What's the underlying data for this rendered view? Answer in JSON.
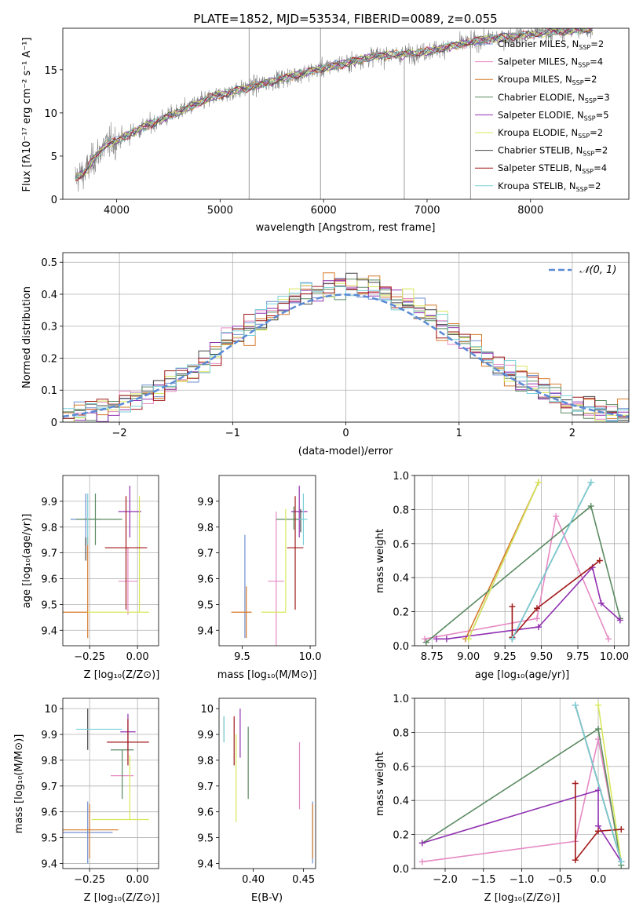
{
  "colors": {
    "Chabrier MILES": "#6f8fd0",
    "Salpeter MILES": "#e68ac4",
    "Kroupa MILES": "#d67a2a",
    "Chabrier ELODIE": "#5a8a60",
    "Salpeter ELODIE": "#9030b0",
    "Kroupa ELODIE": "#d8e85a",
    "Chabrier STELIB": "#444444",
    "Salpeter STELIB": "#a01818",
    "Kroupa STELIB": "#7ad0d8",
    "data": "#808080",
    "normal": "#5b8ad6"
  },
  "chart_data": [
    {
      "id": "spectrum",
      "type": "line",
      "title": "PLATE=1852, MJD=53534, FIBERID=0089, z=0.055",
      "xlabel": "wavelength [Angstrom, rest frame]",
      "ylabel": "Flux [fλ10⁻¹⁷ erg cm⁻² s⁻¹ A⁻¹]",
      "xlim": [
        3480,
        8950
      ],
      "ylim": [
        0,
        19.8
      ],
      "xticks": [
        4000,
        5000,
        6000,
        7000,
        8000
      ],
      "yticks": [
        0,
        5,
        10,
        15
      ],
      "legend_position": "right",
      "legend": [
        {
          "name": "Chabrier MILES",
          "sub": "SSP",
          "n": "2"
        },
        {
          "name": "Salpeter MILES",
          "sub": "SSP",
          "n": "4"
        },
        {
          "name": "Kroupa MILES",
          "sub": "SSP",
          "n": "2"
        },
        {
          "name": "Chabrier ELODIE",
          "sub": "SSP",
          "n": "3"
        },
        {
          "name": "Salpeter ELODIE",
          "sub": "SSP",
          "n": "5"
        },
        {
          "name": "Kroupa ELODIE",
          "sub": "SSP",
          "n": "2"
        },
        {
          "name": "Chabrier STELIB",
          "sub": "SSP",
          "n": "2"
        },
        {
          "name": "Salpeter STELIB",
          "sub": "SSP",
          "n": "4"
        },
        {
          "name": "Kroupa STELIB",
          "sub": "SSP",
          "n": "2"
        }
      ],
      "continuum": {
        "x": [
          3600,
          3700,
          3800,
          3900,
          4000,
          4200,
          4500,
          4800,
          5000,
          5300,
          5600,
          6000,
          6300,
          6500,
          6800,
          7000,
          7300,
          7600,
          8000,
          8300,
          8600
        ],
        "y": [
          2.5,
          3.2,
          5.0,
          6.4,
          6.8,
          8.0,
          9.6,
          11.2,
          12.1,
          13.0,
          14.0,
          15.2,
          16.0,
          16.6,
          16.8,
          17.1,
          17.9,
          18.6,
          19.1,
          19.5,
          19.7
        ]
      }
    },
    {
      "id": "residuals",
      "type": "histogram",
      "xlabel": "(data-model)/error",
      "ylabel": "Normed distribution",
      "xlim": [
        -2.5,
        2.5
      ],
      "ylim": [
        0,
        0.53
      ],
      "xticks": [
        -2,
        -1,
        0,
        1,
        2
      ],
      "yticks": [
        0.0,
        0.1,
        0.2,
        0.3,
        0.4,
        0.5
      ],
      "legend": "𝒩(0, 1)",
      "legend_position": "upper right",
      "gaussian": {
        "mean": 0,
        "sigma": 1
      },
      "bin_width": 0.1
    },
    {
      "id": "age_vs_Z",
      "type": "errorbar",
      "xlabel": "Z [log₁₀(Z/Z⊙)]",
      "ylabel": "age  [log₁₀(age/yr)]",
      "xlim": [
        -0.39,
        0.11
      ],
      "ylim": [
        9.34,
        10.0
      ],
      "xticks": [
        -0.25,
        0.0
      ],
      "xticklabels": [
        "−0.25",
        "0.00"
      ],
      "yticks": [
        9.4,
        9.5,
        9.6,
        9.7,
        9.8,
        9.9
      ],
      "points": [
        {
          "s": "Chabrier MILES",
          "x": -0.27,
          "y": 9.83,
          "xe": [
            0.08,
            0.08
          ],
          "ye": [
            0.1,
            0.1
          ]
        },
        {
          "s": "Salpeter MILES",
          "x": -0.05,
          "y": 9.59,
          "xe": [
            0.05,
            0.05
          ],
          "ye": [
            0.13,
            0.13
          ]
        },
        {
          "s": "Kroupa MILES",
          "x": -0.26,
          "y": 9.47,
          "xe": [
            0.14,
            0.0
          ],
          "ye": [
            0.1,
            0.29
          ]
        },
        {
          "s": "Chabrier ELODIE",
          "x": -0.22,
          "y": 9.83,
          "xe": [
            0.1,
            0.14
          ],
          "ye": [
            0.1,
            0.1
          ]
        },
        {
          "s": "Salpeter ELODIE",
          "x": -0.04,
          "y": 9.86,
          "xe": [
            0.06,
            0.06
          ],
          "ye": [
            0.1,
            0.1
          ]
        },
        {
          "s": "Kroupa ELODIE",
          "x": 0.01,
          "y": 9.47,
          "xe": [
            0.27,
            0.05
          ],
          "ye": [
            0.0,
            0.45
          ]
        },
        {
          "s": "Chabrier STELIB",
          "x": -0.27,
          "y": 9.72,
          "xe": [
            0.0,
            0.0
          ],
          "ye": [
            0.05,
            0.04
          ]
        },
        {
          "s": "Salpeter STELIB",
          "x": -0.06,
          "y": 9.72,
          "xe": [
            0.11,
            0.11
          ],
          "ye": [
            0.24,
            0.2
          ]
        },
        {
          "s": "Kroupa STELIB",
          "x": -0.26,
          "y": 9.83,
          "xe": [
            0.0,
            0.0
          ],
          "ye": [
            0.1,
            0.1
          ]
        }
      ]
    },
    {
      "id": "age_vs_mass",
      "type": "errorbar",
      "xlabel": "mass [log₁₀(M/M⊙)]",
      "ylabel": "",
      "xlim": [
        9.33,
        10.04
      ],
      "ylim": [
        9.34,
        10.0
      ],
      "xticks": [
        9.5,
        10.0
      ],
      "xticklabels": [
        "9.5",
        "10.0"
      ],
      "yticks": [
        9.4,
        9.5,
        9.6,
        9.7,
        9.8,
        9.9
      ],
      "points": [
        {
          "s": "Chabrier MILES",
          "x": 9.52,
          "y": 9.57,
          "xe": [
            0.0,
            0.0
          ],
          "ye": [
            0.2,
            0.2
          ]
        },
        {
          "s": "Salpeter MILES",
          "x": 9.75,
          "y": 9.59,
          "xe": [
            0.06,
            0.06
          ],
          "ye": [
            0.27,
            0.27
          ]
        },
        {
          "s": "Kroupa MILES",
          "x": 9.53,
          "y": 9.47,
          "xe": [
            0.11,
            0.04
          ],
          "ye": [
            0.1,
            0.1
          ]
        },
        {
          "s": "Chabrier ELODIE",
          "x": 9.88,
          "y": 9.83,
          "xe": [
            0.13,
            0.06
          ],
          "ye": [
            0.04,
            0.05
          ]
        },
        {
          "s": "Salpeter ELODIE",
          "x": 9.92,
          "y": 9.86,
          "xe": [
            0.06,
            0.06
          ],
          "ye": [
            0.1,
            0.1
          ]
        },
        {
          "s": "Kroupa ELODIE",
          "x": 9.82,
          "y": 9.47,
          "xe": [
            0.18,
            0.0
          ],
          "ye": [
            0.0,
            0.4
          ]
        },
        {
          "s": "Chabrier STELIB",
          "x": 9.93,
          "y": 9.83,
          "xe": [
            0.0,
            0.0
          ],
          "ye": [
            0.05,
            0.04
          ]
        },
        {
          "s": "Salpeter STELIB",
          "x": 9.89,
          "y": 9.72,
          "xe": [
            0.06,
            0.06
          ],
          "ye": [
            0.24,
            0.2
          ]
        },
        {
          "s": "Kroupa STELIB",
          "x": 9.95,
          "y": 9.83,
          "xe": [
            0.03,
            0.03
          ],
          "ye": [
            0.1,
            0.1
          ]
        }
      ]
    },
    {
      "id": "weight_vs_age",
      "type": "line",
      "xlabel": "age  [log₁₀(age/yr)]",
      "ylabel": "mass weight",
      "xlim": [
        8.63,
        10.1
      ],
      "ylim": [
        0,
        1.0
      ],
      "xticks": [
        8.75,
        9.0,
        9.25,
        9.5,
        9.75,
        10.0
      ],
      "xticklabels": [
        "8.75",
        "9.00",
        "9.25",
        "9.50",
        "9.75",
        "10.00"
      ],
      "yticks": [
        0.0,
        0.2,
        0.4,
        0.6,
        0.8,
        1.0
      ],
      "yticklabels": [
        "0.0",
        "0.2",
        "0.4",
        "0.6",
        "0.8",
        "1.0"
      ],
      "series": [
        {
          "s": "Chabrier MILES",
          "points": [
            [
              9.0,
              0.04
            ],
            [
              9.48,
              0.96
            ]
          ]
        },
        {
          "s": "Salpeter MILES",
          "points": [
            [
              8.7,
              0.04
            ],
            [
              9.47,
              0.16
            ],
            [
              9.6,
              0.76
            ],
            [
              9.96,
              0.04
            ]
          ]
        },
        {
          "s": "Kroupa MILES",
          "points": [
            [
              8.98,
              0.04
            ],
            [
              9.48,
              0.96
            ]
          ]
        },
        {
          "s": "Chabrier ELODIE",
          "points": [
            [
              8.71,
              0.02
            ],
            [
              9.84,
              0.82
            ],
            [
              10.04,
              0.16
            ]
          ]
        },
        {
          "s": "Salpeter ELODIE",
          "points": [
            [
              8.78,
              0.04
            ],
            [
              8.85,
              0.04
            ],
            [
              9.48,
              0.11
            ],
            [
              9.85,
              0.46
            ],
            [
              9.91,
              0.25
            ],
            [
              10.04,
              0.15
            ]
          ]
        },
        {
          "s": "Kroupa ELODIE",
          "points": [
            [
              9.0,
              0.04
            ],
            [
              9.48,
              0.96
            ]
          ]
        },
        {
          "s": "Chabrier STELIB",
          "points": [
            [
              9.3,
              0.04
            ],
            [
              9.84,
              0.96
            ]
          ]
        },
        {
          "s": "Salpeter STELIB",
          "points": [
            [
              9.3,
              0.23
            ],
            [
              9.3,
              0.05
            ],
            [
              9.47,
              0.22
            ],
            [
              9.9,
              0.5
            ]
          ]
        },
        {
          "s": "Kroupa STELIB",
          "points": [
            [
              9.3,
              0.04
            ],
            [
              9.84,
              0.96
            ]
          ]
        }
      ]
    },
    {
      "id": "mass_vs_Z",
      "type": "errorbar",
      "xlabel": "Z [log₁₀(Z/Z⊙)]",
      "ylabel": "mass [log₁₀(M/M⊙)]",
      "xlim": [
        -0.39,
        0.11
      ],
      "ylim": [
        9.38,
        10.04
      ],
      "xticks": [
        -0.25,
        0.0
      ],
      "xticklabels": [
        "−0.25",
        "0.00"
      ],
      "yticks": [
        9.4,
        9.5,
        9.6,
        9.7,
        9.8,
        9.9,
        10.0
      ],
      "points": [
        {
          "s": "Chabrier MILES",
          "x": -0.26,
          "y": 9.52,
          "xe": [
            0.14,
            0.13
          ],
          "ye": [
            0.12,
            0.12
          ]
        },
        {
          "s": "Salpeter MILES",
          "x": -0.08,
          "y": 9.74,
          "xe": [
            0.06,
            0.06
          ],
          "ye": [
            0.0,
            0.0
          ]
        },
        {
          "s": "Kroupa MILES",
          "x": -0.25,
          "y": 9.53,
          "xe": [
            0.14,
            0.15
          ],
          "ye": [
            0.11,
            0.1
          ]
        },
        {
          "s": "Chabrier ELODIE",
          "x": -0.08,
          "y": 9.84,
          "xe": [
            0.06,
            0.06
          ],
          "ye": [
            0.19,
            0.0
          ]
        },
        {
          "s": "Salpeter ELODIE",
          "x": -0.05,
          "y": 9.91,
          "xe": [
            0.04,
            0.04
          ],
          "ye": [
            0.07,
            0.07
          ]
        },
        {
          "s": "Kroupa ELODIE",
          "x": -0.04,
          "y": 9.57,
          "xe": [
            0.2,
            0.1
          ],
          "ye": [
            0.0,
            0.25
          ]
        },
        {
          "s": "Chabrier STELIB",
          "x": -0.26,
          "y": 9.92,
          "xe": [
            0.0,
            0.0
          ],
          "ye": [
            0.08,
            0.08
          ]
        },
        {
          "s": "Salpeter STELIB",
          "x": -0.05,
          "y": 9.87,
          "xe": [
            0.11,
            0.11
          ],
          "ye": [
            0.09,
            0.09
          ]
        },
        {
          "s": "Kroupa STELIB",
          "x": -0.22,
          "y": 9.92,
          "xe": [
            0.1,
            0.14
          ],
          "ye": [
            0.0,
            0.0
          ]
        }
      ]
    },
    {
      "id": "mass_vs_EBV",
      "type": "errorbar",
      "xlabel": "E(B-V)",
      "ylabel": "",
      "xlim": [
        0.366,
        0.462
      ],
      "ylim": [
        9.38,
        10.04
      ],
      "xticks": [
        0.4,
        0.45
      ],
      "xticklabels": [
        "0.40",
        "0.45"
      ],
      "yticks": [
        9.4,
        9.5,
        9.6,
        9.7,
        9.8,
        9.9,
        10.0
      ],
      "points": [
        {
          "s": "Chabrier MILES",
          "x": 0.459,
          "y": 9.52,
          "xe": [
            0.0,
            0.0
          ],
          "ye": [
            0.12,
            0.12
          ]
        },
        {
          "s": "Salpeter MILES",
          "x": 0.446,
          "y": 9.74,
          "xe": [
            0.0,
            0.0
          ],
          "ye": [
            0.13,
            0.13
          ]
        },
        {
          "s": "Kroupa MILES",
          "x": 0.459,
          "y": 9.53,
          "xe": [
            0.0,
            0.0
          ],
          "ye": [
            0.11,
            0.1
          ]
        },
        {
          "s": "Chabrier ELODIE",
          "x": 0.395,
          "y": 9.84,
          "xe": [
            0.0,
            0.0
          ],
          "ye": [
            0.19,
            0.09
          ]
        },
        {
          "s": "Salpeter ELODIE",
          "x": 0.387,
          "y": 9.91,
          "xe": [
            0.0,
            0.0
          ],
          "ye": [
            0.1,
            0.09
          ]
        },
        {
          "s": "Kroupa ELODIE",
          "x": 0.383,
          "y": 9.73,
          "xe": [
            0.0,
            0.0
          ],
          "ye": [
            0.17,
            0.17
          ]
        },
        {
          "s": "Chabrier STELIB",
          "x": 0.371,
          "y": 9.92,
          "xe": [
            0.0,
            0.0
          ],
          "ye": [
            0.05,
            0.05
          ]
        },
        {
          "s": "Salpeter STELIB",
          "x": 0.381,
          "y": 9.87,
          "xe": [
            0.0,
            0.0
          ],
          "ye": [
            0.09,
            0.1
          ]
        },
        {
          "s": "Kroupa STELIB",
          "x": 0.371,
          "y": 9.92,
          "xe": [
            0.0,
            0.0
          ],
          "ye": [
            0.05,
            0.05
          ]
        }
      ]
    },
    {
      "id": "weight_vs_Z",
      "type": "line",
      "xlabel": "Z [log₁₀(Z/Z⊙)]",
      "ylabel": "mass weight",
      "xlim": [
        -2.4,
        0.4
      ],
      "ylim": [
        0,
        1.0
      ],
      "xticks": [
        -2.0,
        -1.5,
        -1.0,
        -0.5,
        0.0
      ],
      "xticklabels": [
        "−2.0",
        "−1.5",
        "−1.0",
        "−0.5",
        "0.0"
      ],
      "yticks": [
        0.0,
        0.2,
        0.4,
        0.6,
        0.8,
        1.0
      ],
      "yticklabels": [
        "0.0",
        "0.2",
        "0.4",
        "0.6",
        "0.8",
        "1.0"
      ],
      "series": [
        {
          "s": "Chabrier MILES",
          "points": [
            [
              -0.3,
              0.96
            ],
            [
              0.3,
              0.04
            ]
          ]
        },
        {
          "s": "Salpeter MILES",
          "points": [
            [
              -2.3,
              0.04
            ],
            [
              -0.3,
              0.16
            ],
            [
              0.0,
              0.76
            ],
            [
              0.3,
              0.04
            ]
          ]
        },
        {
          "s": "Kroupa MILES",
          "points": [
            [
              -0.3,
              0.96
            ],
            [
              0.3,
              0.04
            ]
          ]
        },
        {
          "s": "Chabrier ELODIE",
          "points": [
            [
              -2.3,
              0.15
            ],
            [
              0.0,
              0.82
            ],
            [
              0.3,
              0.02
            ]
          ]
        },
        {
          "s": "Salpeter ELODIE",
          "points": [
            [
              -2.3,
              0.15
            ],
            [
              0.0,
              0.46
            ],
            [
              0.0,
              0.25
            ],
            [
              0.3,
              0.04
            ]
          ]
        },
        {
          "s": "Kroupa ELODIE",
          "points": [
            [
              0.0,
              0.96
            ],
            [
              0.3,
              0.04
            ]
          ]
        },
        {
          "s": "Chabrier STELIB",
          "points": [
            [
              -0.3,
              0.96
            ],
            [
              0.3,
              0.04
            ]
          ]
        },
        {
          "s": "Salpeter STELIB",
          "points": [
            [
              -0.3,
              0.5
            ],
            [
              -0.3,
              0.05
            ],
            [
              0.0,
              0.22
            ],
            [
              0.3,
              0.23
            ]
          ]
        },
        {
          "s": "Kroupa STELIB",
          "points": [
            [
              -0.3,
              0.96
            ],
            [
              0.3,
              0.04
            ]
          ]
        }
      ]
    }
  ]
}
